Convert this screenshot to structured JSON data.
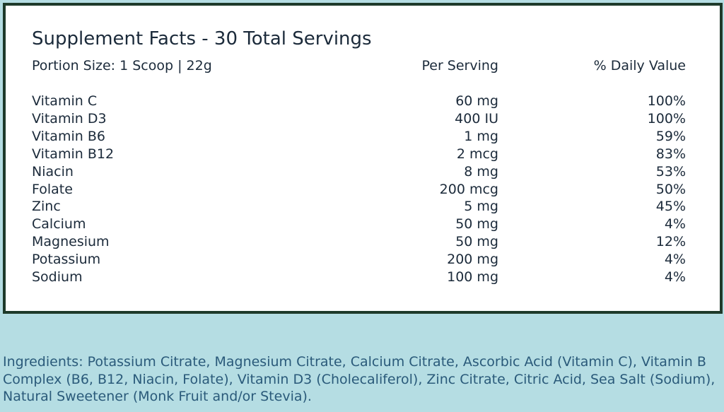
{
  "header": {
    "title": "Supplement Facts - 30 Total Servings",
    "portion": "Portion Size: 1 Scoop | 22g",
    "per_serving": "Per Serving",
    "daily_value": "% Daily Value"
  },
  "table": {
    "rows": [
      [
        "Vitamin C",
        "60 mg",
        "100%"
      ],
      [
        "Vitamin D3",
        "400 IU",
        "100%"
      ],
      [
        "Vitamin B6",
        "1 mg",
        "59%"
      ],
      [
        "Vitamin B12",
        "2 mcg",
        "83%"
      ],
      [
        "Niacin",
        "8 mg",
        "53%"
      ],
      [
        "Folate",
        "200 mcg",
        "50%"
      ],
      [
        "Zinc",
        "5 mg",
        "45%"
      ],
      [
        "Calcium",
        "50 mg",
        "4%"
      ],
      [
        "Magnesium",
        "50 mg",
        "12%"
      ],
      [
        "Potassium",
        "200 mg",
        "4%"
      ],
      [
        "Sodium",
        "100 mg",
        "4%"
      ]
    ]
  },
  "ingredients": "Ingredients: Potassium Citrate, Magnesium Citrate, Calcium Citrate, Ascorbic Acid (Vitamin C), Vitamin B Complex (B6, B12, Niacin, Folate), Vitamin D3 (Cholecaliferol), Zinc Citrate, Citric Acid, Sea Salt (Sodium), Natural Sweetener (Monk Fruit and/or Stevia)."
}
